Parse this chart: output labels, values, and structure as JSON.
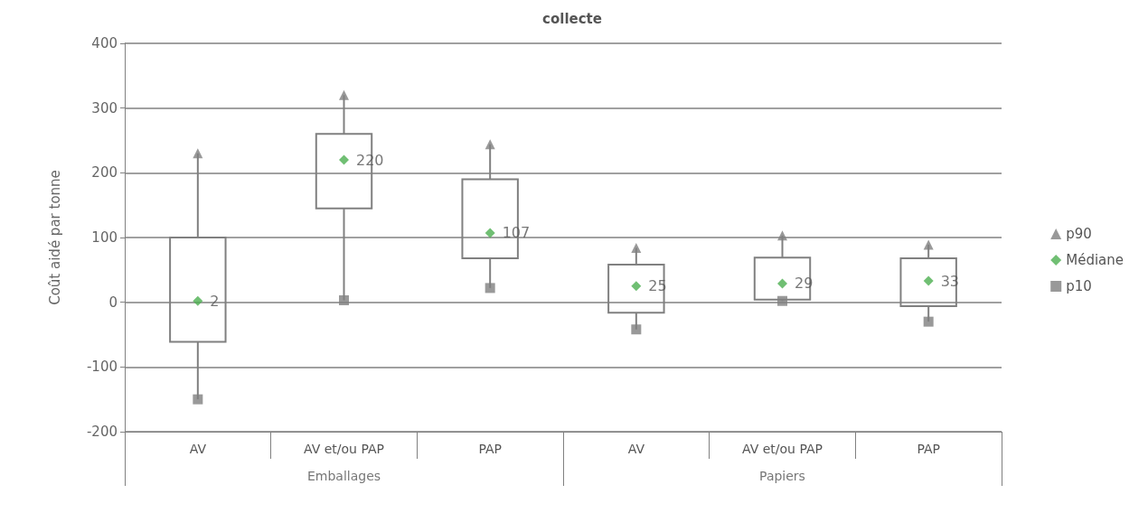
{
  "chart_data": {
    "type": "box",
    "title": "collecte",
    "ylabel": "Coût aidé par tonne",
    "categories": [
      "AV",
      "AV et/ou PAP",
      "PAP",
      "AV",
      "AV et/ou PAP",
      "PAP"
    ],
    "annotations": [
      "Emballages",
      "Papiers"
    ],
    "boxes": [
      {
        "low": -150,
        "q1": -61,
        "q3": 100,
        "high": 230
      },
      {
        "low": 3,
        "q1": 145,
        "q3": 260,
        "high": 320
      },
      {
        "low": 22,
        "q1": 68,
        "q3": 190,
        "high": 244
      },
      {
        "low": -42,
        "q1": -16,
        "q3": 58,
        "high": 84
      },
      {
        "low": 2,
        "q1": 4,
        "q3": 69,
        "high": 103
      },
      {
        "low": -30,
        "q1": -6,
        "q3": 68,
        "high": 89
      }
    ],
    "series": [
      {
        "name": "p90",
        "type": "scatter",
        "marker": "triangle",
        "color": "#7f7f7f",
        "values": [
          230,
          320,
          244,
          84,
          103,
          89
        ]
      },
      {
        "name": "Médiane",
        "type": "scatter",
        "marker": "diamond",
        "color": "#4caf50",
        "values": [
          2,
          220,
          107,
          25,
          29,
          33
        ],
        "value_labels": [
          "2",
          "220",
          "107",
          "25",
          "29",
          "33"
        ]
      },
      {
        "name": "p10",
        "type": "scatter",
        "marker": "square",
        "color": "#7f7f7f",
        "values": [
          -150,
          3,
          22,
          -42,
          2,
          -30
        ]
      }
    ],
    "ylim": [
      -200,
      400
    ],
    "yticks": [
      -200,
      -100,
      0,
      100,
      200,
      300,
      400
    ],
    "grid": "y",
    "legend": "right"
  }
}
